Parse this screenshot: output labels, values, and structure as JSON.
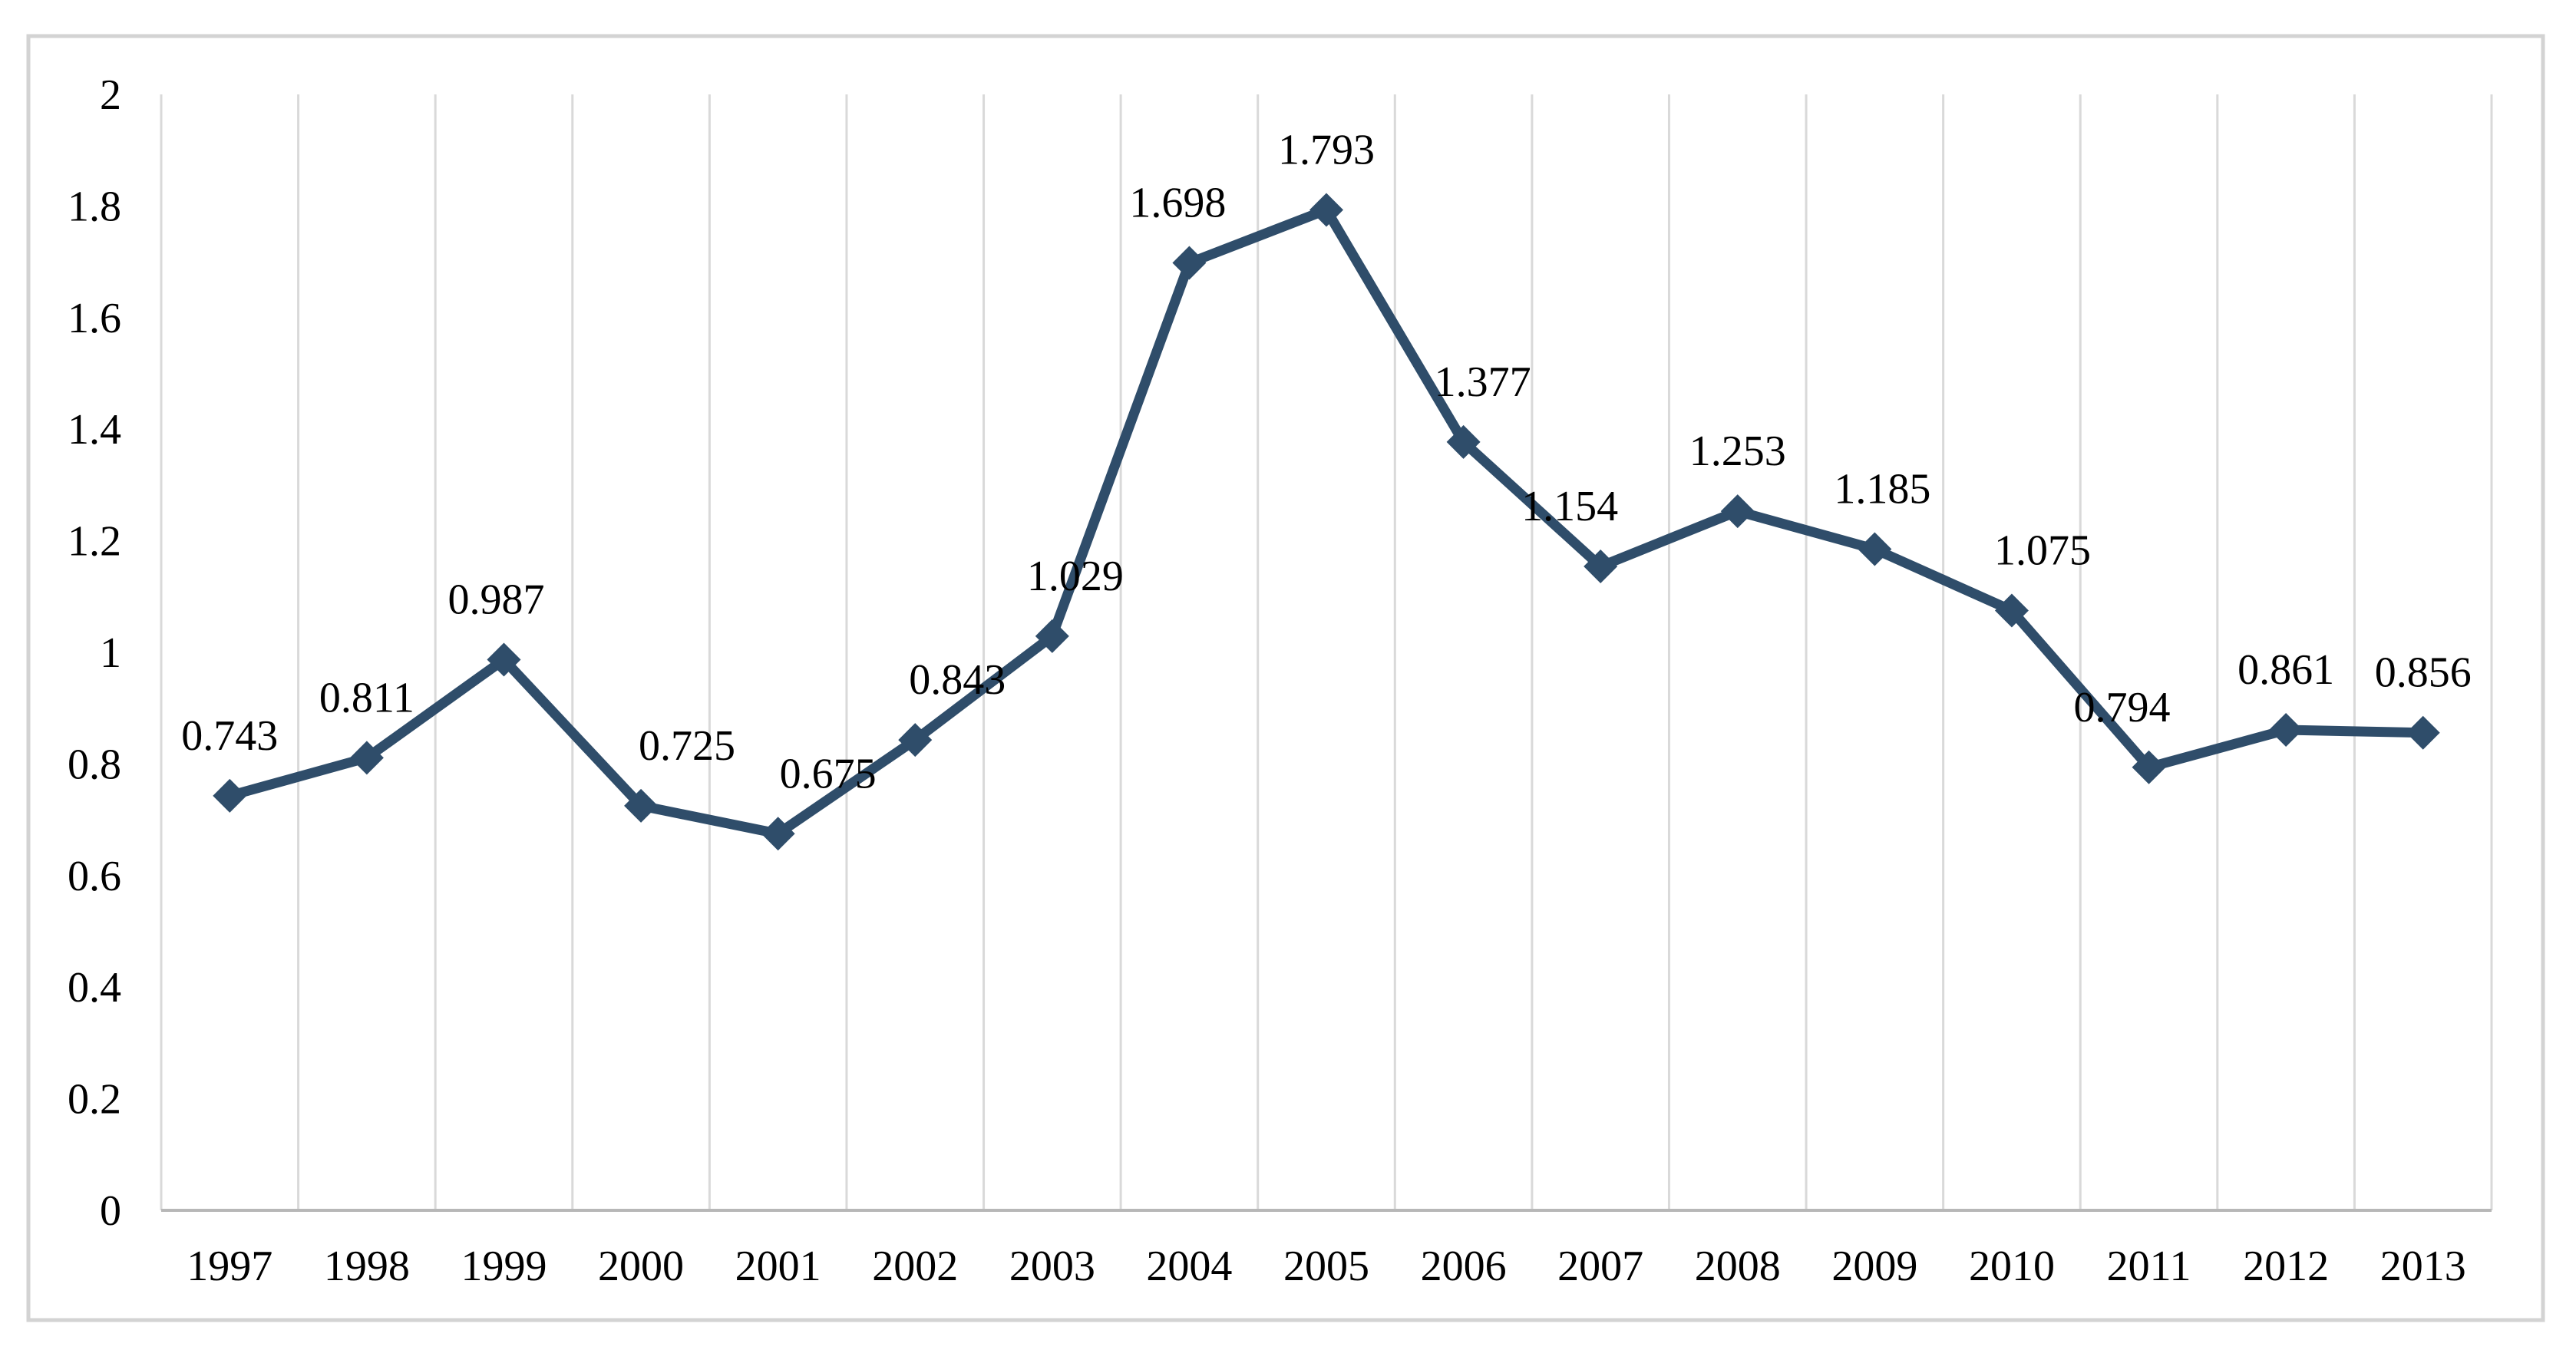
{
  "chart_data": {
    "type": "line",
    "title": "",
    "categories": [
      "1997",
      "1998",
      "1999",
      "2000",
      "2001",
      "2002",
      "2003",
      "2004",
      "2005",
      "2006",
      "2007",
      "2008",
      "2009",
      "2010",
      "2011",
      "2012",
      "2013"
    ],
    "series": [
      {
        "name": "",
        "values": [
          0.743,
          0.811,
          0.987,
          0.725,
          0.675,
          0.843,
          1.029,
          1.698,
          1.793,
          1.377,
          1.154,
          1.253,
          1.185,
          1.075,
          0.794,
          0.861,
          0.856
        ]
      }
    ],
    "data_labels": [
      "0.743",
      "0.811",
      "0.987",
      "0.725",
      "0.675",
      "0.843",
      "1.029",
      "1.698",
      "1.793",
      "1.377",
      "1.154",
      "1.253",
      "1.185",
      "1.075",
      "0.794",
      "0.861",
      "0.856"
    ],
    "y_tick_labels": [
      "0",
      "0.2",
      "0.4",
      "0.6",
      "0.8",
      "1",
      "1.2",
      "1.4",
      "1.6",
      "1.8",
      "2"
    ],
    "ylim": [
      0,
      2
    ],
    "y_tick_step": 0.2,
    "xlabel": "",
    "ylabel": "",
    "legend": "none",
    "grid": "vertical-only",
    "marker": "diamond",
    "colors": {
      "line": "#2F4D6A",
      "marker": "#2F4D6A",
      "gridline": "#d9d9d9",
      "axis_line": "#b7b7b7",
      "frame_border": "#d3d3d3",
      "text": "#000000",
      "plot_background": "#ffffff"
    }
  }
}
